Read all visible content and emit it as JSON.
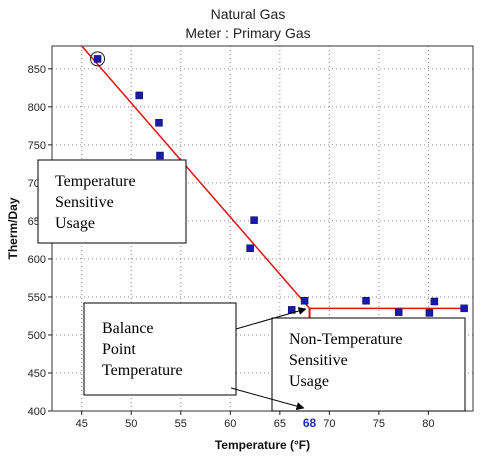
{
  "chart_data": {
    "type": "scatter",
    "title": "Natural Gas",
    "subtitle": "Meter : Primary Gas",
    "xlabel": "Temperature (°F)",
    "ylabel": "Therm/Day",
    "xlim": [
      42,
      84.5
    ],
    "ylim": [
      400,
      880
    ],
    "x_ticks": [
      45,
      50,
      55,
      60,
      65,
      70,
      75,
      80
    ],
    "y_ticks": [
      400,
      450,
      500,
      550,
      600,
      650,
      700,
      750,
      800,
      850
    ],
    "grid": "dotted",
    "marker_color": "#1a1aa8",
    "line_color": "#e01010",
    "points": [
      {
        "x": 46.6,
        "y": 863,
        "highlighted": true
      },
      {
        "x": 50.8,
        "y": 815
      },
      {
        "x": 52.8,
        "y": 779
      },
      {
        "x": 52.9,
        "y": 736
      },
      {
        "x": 62.4,
        "y": 651
      },
      {
        "x": 62.0,
        "y": 614
      },
      {
        "x": 67.5,
        "y": 545
      },
      {
        "x": 66.2,
        "y": 533
      },
      {
        "x": 73.7,
        "y": 545
      },
      {
        "x": 77.0,
        "y": 530
      },
      {
        "x": 80.1,
        "y": 529
      },
      {
        "x": 80.6,
        "y": 544
      },
      {
        "x": 83.6,
        "y": 535
      }
    ],
    "fit_lines": [
      {
        "name": "temperature-sensitive",
        "x": [
          45,
          68
        ],
        "y": [
          880,
          535
        ]
      },
      {
        "name": "base-load",
        "x": [
          68,
          84
        ],
        "y": [
          535,
          535
        ]
      }
    ],
    "balance_point": {
      "x": 68,
      "label": "68"
    },
    "annotations": [
      {
        "name": "temperature-sensitive-callout",
        "lines": [
          "Temperature",
          "Sensitive",
          "Usage"
        ]
      },
      {
        "name": "balance-point-callout",
        "lines": [
          "Balance",
          "Point",
          "Temperature"
        ]
      },
      {
        "name": "non-temperature-sensitive-callout",
        "lines": [
          "Non-Temperature",
          "Sensitive",
          "Usage"
        ]
      }
    ]
  }
}
